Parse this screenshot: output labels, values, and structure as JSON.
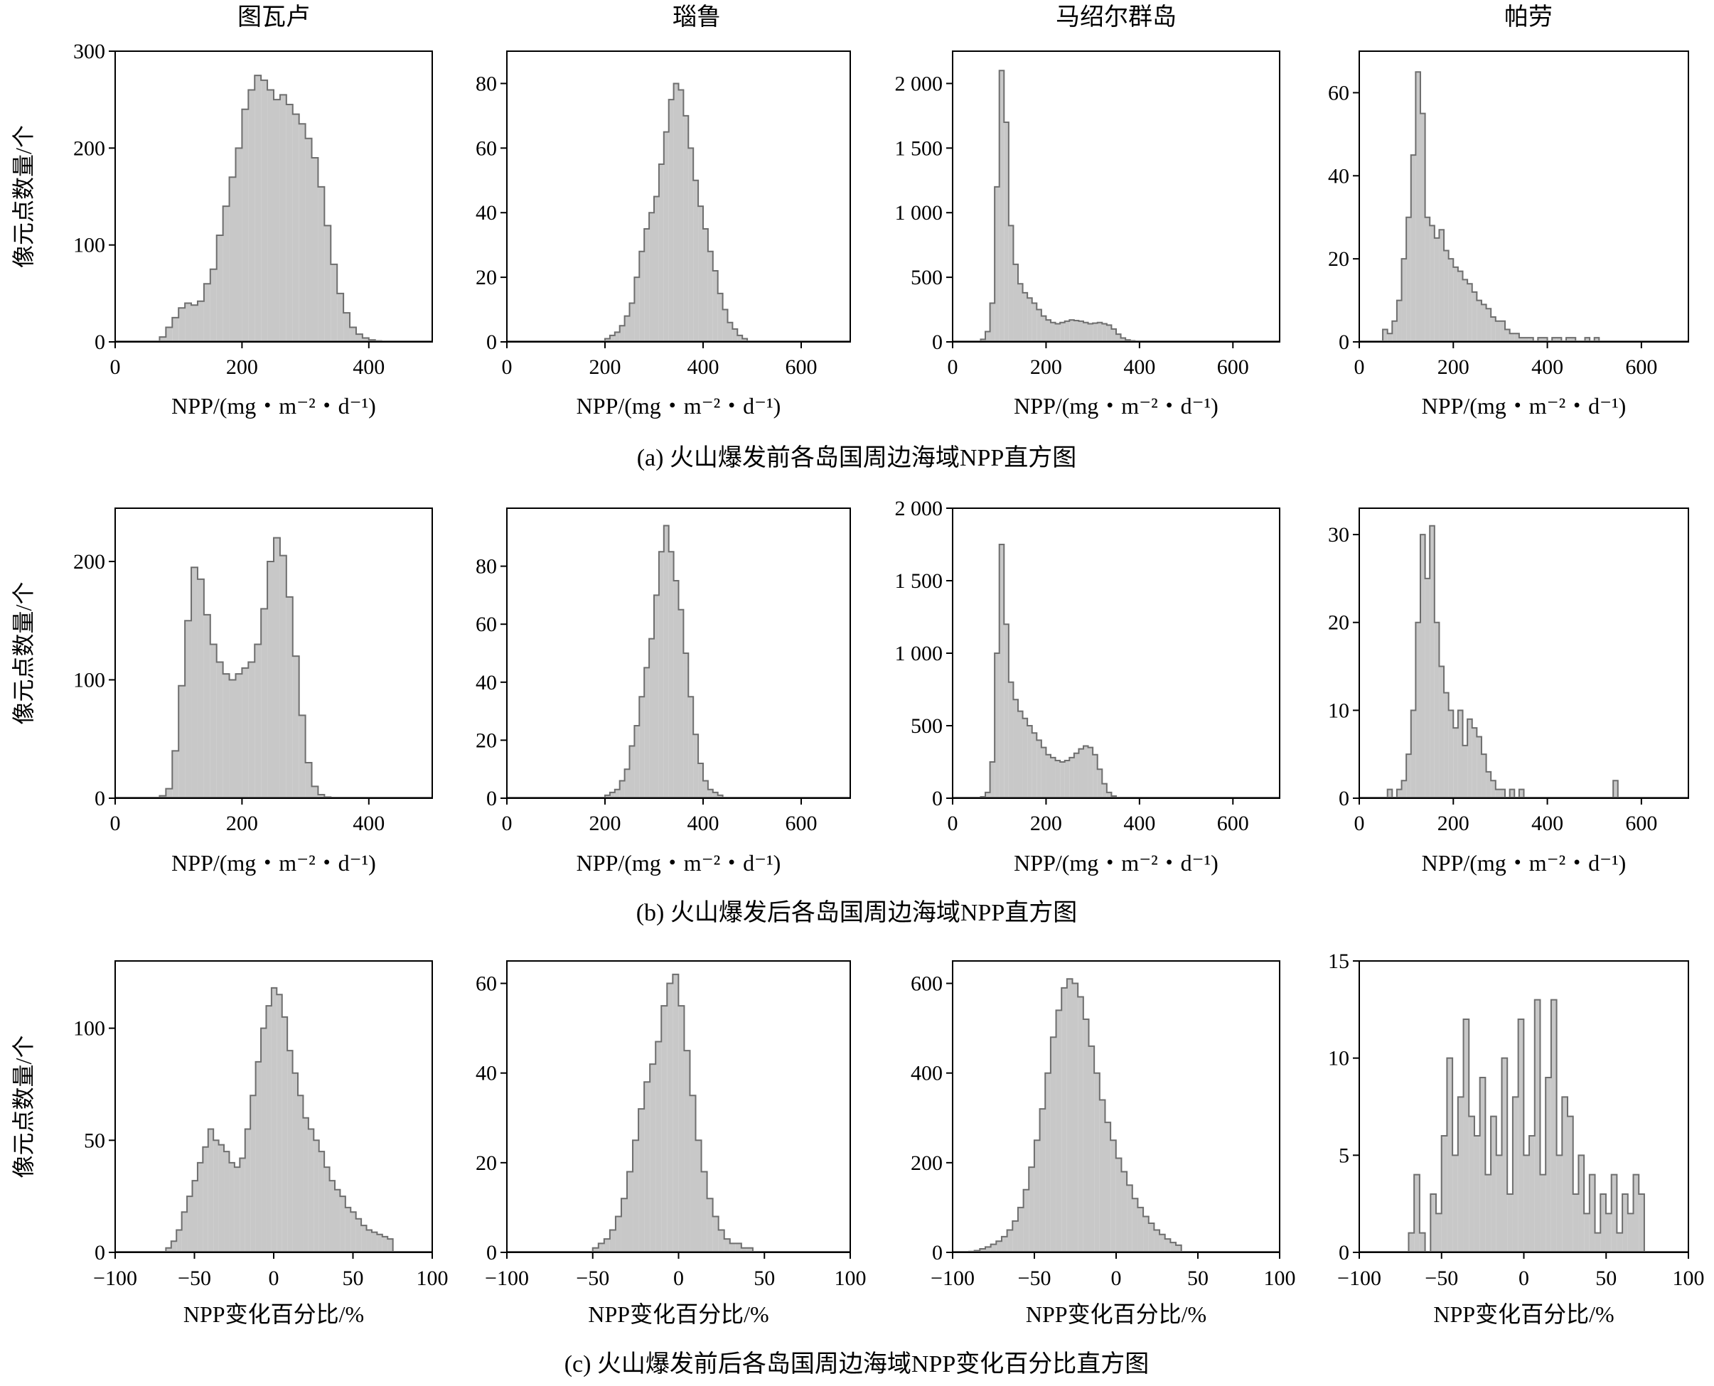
{
  "figure": {
    "row_captions": [
      "(a) 火山爆发前各岛国周边海域NPP直方图",
      "(b) 火山爆发后各岛国周边海域NPP直方图",
      "(c) 火山爆发前后各岛国周边海域NPP变化百分比直方图"
    ],
    "row_ylabel": "像元点数量/个",
    "column_titles": [
      "图瓦卢",
      "瑙鲁",
      "马绍尔群岛",
      "帕劳"
    ],
    "colors": {
      "bar_fill": "#c8c8c8",
      "bar_edge": "#6e6e6e",
      "axis": "#000000"
    }
  },
  "chart_data": [
    {
      "type": "histogram",
      "row": "a",
      "title": "图瓦卢",
      "xlabel": "NPP/(mg・m⁻²・d⁻¹)",
      "ylabel": "像元点数量/个",
      "xlim": [
        0,
        500
      ],
      "ylim": [
        0,
        300
      ],
      "xticks": [
        0,
        200,
        400
      ],
      "xtick_labels": [
        "0",
        "200",
        "400"
      ],
      "yticks": [
        0,
        100,
        200,
        300
      ],
      "ytick_labels": [
        "0",
        "100",
        "200",
        "300"
      ],
      "bin_width": 10,
      "bin_start": 60,
      "values": [
        0,
        5,
        15,
        25,
        35,
        40,
        38,
        42,
        60,
        75,
        110,
        140,
        170,
        200,
        240,
        260,
        275,
        270,
        260,
        250,
        255,
        245,
        235,
        225,
        210,
        190,
        160,
        120,
        80,
        50,
        30,
        15,
        8,
        4,
        2,
        1
      ]
    },
    {
      "type": "histogram",
      "row": "a",
      "title": "瑙鲁",
      "xlabel": "NPP/(mg・m⁻²・d⁻¹)",
      "ylabel": "",
      "xlim": [
        0,
        700
      ],
      "ylim": [
        0,
        90
      ],
      "xticks": [
        0,
        200,
        400,
        600
      ],
      "xtick_labels": [
        "0",
        "200",
        "400",
        "600"
      ],
      "yticks": [
        0,
        20,
        40,
        60,
        80
      ],
      "ytick_labels": [
        "0",
        "20",
        "40",
        "60",
        "80"
      ],
      "bin_width": 10,
      "bin_start": 200,
      "values": [
        1,
        2,
        3,
        5,
        8,
        12,
        20,
        28,
        35,
        40,
        45,
        55,
        65,
        75,
        80,
        78,
        70,
        60,
        50,
        42,
        35,
        28,
        22,
        15,
        10,
        6,
        4,
        2,
        1
      ]
    },
    {
      "type": "histogram",
      "row": "a",
      "title": "马绍尔群岛",
      "xlabel": "NPP/(mg・m⁻²・d⁻¹)",
      "ylabel": "",
      "xlim": [
        0,
        700
      ],
      "ylim": [
        0,
        2250
      ],
      "xticks": [
        0,
        200,
        400,
        600
      ],
      "xtick_labels": [
        "0",
        "200",
        "400",
        "600"
      ],
      "yticks": [
        0,
        500,
        1000,
        1500,
        2000
      ],
      "ytick_labels": [
        "0",
        "500",
        "1 000",
        "1 500",
        "2 000"
      ],
      "bin_width": 10,
      "bin_start": 60,
      "values": [
        20,
        80,
        300,
        1200,
        2100,
        1700,
        900,
        600,
        450,
        380,
        340,
        300,
        250,
        200,
        170,
        150,
        140,
        150,
        160,
        170,
        165,
        160,
        150,
        140,
        145,
        150,
        140,
        130,
        100,
        60,
        30,
        15,
        8,
        5,
        3,
        2,
        1,
        1
      ]
    },
    {
      "type": "histogram",
      "row": "a",
      "title": "帕劳",
      "xlabel": "NPP/(mg・m⁻²・d⁻¹)",
      "ylabel": "",
      "xlim": [
        0,
        700
      ],
      "ylim": [
        0,
        70
      ],
      "xticks": [
        0,
        200,
        400,
        600
      ],
      "xtick_labels": [
        "0",
        "200",
        "400",
        "600"
      ],
      "yticks": [
        0,
        20,
        40,
        60
      ],
      "ytick_labels": [
        "0",
        "20",
        "40",
        "60"
      ],
      "bin_width": 10,
      "bin_start": 50,
      "values": [
        3,
        2,
        5,
        10,
        20,
        30,
        45,
        65,
        55,
        30,
        28,
        25,
        27,
        22,
        20,
        18,
        17,
        15,
        14,
        12,
        10,
        9,
        8,
        6,
        5,
        5,
        3,
        2,
        2,
        1,
        1,
        1,
        0,
        1,
        1,
        0,
        1,
        1,
        0,
        1,
        1,
        0,
        0,
        1,
        0,
        1
      ]
    },
    {
      "type": "histogram",
      "row": "b",
      "title": "图瓦卢",
      "xlabel": "NPP/(mg・m⁻²・d⁻¹)",
      "ylabel": "像元点数量/个",
      "xlim": [
        0,
        500
      ],
      "ylim": [
        0,
        245
      ],
      "xticks": [
        0,
        200,
        400
      ],
      "xtick_labels": [
        "0",
        "200",
        "400"
      ],
      "yticks": [
        0,
        100,
        200
      ],
      "ytick_labels": [
        "0",
        "100",
        "200"
      ],
      "bin_width": 10,
      "bin_start": 60,
      "values": [
        0,
        2,
        8,
        40,
        95,
        150,
        195,
        185,
        155,
        130,
        115,
        105,
        100,
        105,
        110,
        115,
        130,
        160,
        200,
        220,
        205,
        170,
        120,
        70,
        30,
        10,
        3,
        1
      ]
    },
    {
      "type": "histogram",
      "row": "b",
      "title": "瑙鲁",
      "xlabel": "NPP/(mg・m⁻²・d⁻¹)",
      "ylabel": "",
      "xlim": [
        0,
        700
      ],
      "ylim": [
        0,
        100
      ],
      "xticks": [
        0,
        200,
        400,
        600
      ],
      "xtick_labels": [
        "0",
        "200",
        "400",
        "600"
      ],
      "yticks": [
        0,
        20,
        40,
        60,
        80
      ],
      "ytick_labels": [
        "0",
        "20",
        "40",
        "60",
        "80"
      ],
      "bin_width": 10,
      "bin_start": 200,
      "values": [
        1,
        2,
        3,
        6,
        10,
        18,
        25,
        35,
        45,
        55,
        70,
        85,
        94,
        85,
        75,
        65,
        50,
        35,
        22,
        12,
        6,
        3,
        2,
        1
      ]
    },
    {
      "type": "histogram",
      "row": "b",
      "title": "马绍尔群岛",
      "xlabel": "NPP/(mg・m⁻²・d⁻¹)",
      "ylabel": "",
      "xlim": [
        0,
        700
      ],
      "ylim": [
        0,
        2000
      ],
      "xticks": [
        0,
        200,
        400,
        600
      ],
      "xtick_labels": [
        "0",
        "200",
        "400",
        "600"
      ],
      "yticks": [
        0,
        500,
        1000,
        1500,
        2000
      ],
      "ytick_labels": [
        "0",
        "500",
        "1 000",
        "1 500",
        "2 000"
      ],
      "bin_width": 10,
      "bin_start": 60,
      "values": [
        10,
        40,
        250,
        1000,
        1750,
        1200,
        800,
        680,
        600,
        550,
        500,
        450,
        400,
        350,
        300,
        280,
        260,
        250,
        260,
        280,
        310,
        340,
        360,
        350,
        300,
        200,
        100,
        40,
        15,
        5,
        3,
        2,
        1,
        1,
        1,
        1
      ]
    },
    {
      "type": "histogram",
      "row": "b",
      "title": "帕劳",
      "xlabel": "NPP/(mg・m⁻²・d⁻¹)",
      "ylabel": "",
      "xlim": [
        0,
        700
      ],
      "ylim": [
        0,
        33
      ],
      "xticks": [
        0,
        200,
        400,
        600
      ],
      "xtick_labels": [
        "0",
        "200",
        "400",
        "600"
      ],
      "yticks": [
        0,
        10,
        20,
        30
      ],
      "ytick_labels": [
        "0",
        "10",
        "20",
        "30"
      ],
      "bin_width": 10,
      "bin_start": 60,
      "values": [
        1,
        0,
        1,
        2,
        5,
        10,
        20,
        30,
        25,
        31,
        20,
        15,
        12,
        10,
        8,
        10,
        6,
        9,
        8,
        7,
        5,
        3,
        2,
        1,
        1,
        0,
        1,
        0,
        1,
        0,
        0,
        0,
        0,
        0,
        0,
        0,
        0,
        0,
        0,
        0,
        0,
        0,
        0,
        0,
        0,
        0,
        0,
        0,
        2
      ]
    },
    {
      "type": "histogram",
      "row": "c",
      "title": "图瓦卢",
      "xlabel": "NPP变化百分比/%",
      "ylabel": "像元点数量/个",
      "xlim": [
        -100,
        100
      ],
      "ylim": [
        0,
        130
      ],
      "xticks": [
        -100,
        -50,
        0,
        50,
        100
      ],
      "xtick_labels": [
        "−100",
        "−50",
        "0",
        "50",
        "100"
      ],
      "yticks": [
        0,
        50,
        100
      ],
      "ytick_labels": [
        "0",
        "50",
        "100"
      ],
      "bin_width": 3.33,
      "bin_start": -68,
      "values": [
        2,
        5,
        10,
        18,
        25,
        32,
        40,
        47,
        55,
        50,
        48,
        45,
        40,
        38,
        42,
        55,
        70,
        85,
        100,
        110,
        118,
        115,
        105,
        90,
        80,
        70,
        60,
        55,
        50,
        45,
        38,
        32,
        28,
        25,
        20,
        18,
        15,
        12,
        10,
        9,
        8,
        7,
        6
      ]
    },
    {
      "type": "histogram",
      "row": "c",
      "title": "瑙鲁",
      "xlabel": "NPP变化百分比/%",
      "ylabel": "",
      "xlim": [
        -100,
        100
      ],
      "ylim": [
        0,
        65
      ],
      "xticks": [
        -100,
        -50,
        0,
        50,
        100
      ],
      "xtick_labels": [
        "−100",
        "−50",
        "0",
        "50",
        "100"
      ],
      "yticks": [
        0,
        20,
        40,
        60
      ],
      "ytick_labels": [
        "0",
        "20",
        "40",
        "60"
      ],
      "bin_width": 3.33,
      "bin_start": -50,
      "values": [
        1,
        2,
        3,
        5,
        8,
        12,
        18,
        25,
        32,
        38,
        42,
        47,
        55,
        60,
        62,
        55,
        45,
        35,
        25,
        18,
        12,
        8,
        5,
        3,
        2,
        2,
        1,
        1
      ]
    },
    {
      "type": "histogram",
      "row": "c",
      "title": "马绍尔群岛",
      "xlabel": "NPP变化百分比/%",
      "ylabel": "",
      "xlim": [
        -100,
        100
      ],
      "ylim": [
        0,
        650
      ],
      "xticks": [
        -100,
        -50,
        0,
        50,
        100
      ],
      "xtick_labels": [
        "−100",
        "−50",
        "0",
        "50",
        "100"
      ],
      "yticks": [
        0,
        200,
        400,
        600
      ],
      "ytick_labels": [
        "0",
        "200",
        "400",
        "600"
      ],
      "bin_width": 3.33,
      "bin_start": -90,
      "values": [
        2,
        4,
        8,
        12,
        18,
        25,
        35,
        50,
        70,
        100,
        140,
        190,
        250,
        320,
        400,
        480,
        540,
        590,
        610,
        600,
        570,
        520,
        460,
        400,
        340,
        290,
        250,
        210,
        180,
        150,
        120,
        100,
        80,
        65,
        50,
        40,
        30,
        22,
        16
      ]
    },
    {
      "type": "histogram",
      "row": "c",
      "title": "帕劳",
      "xlabel": "NPP变化百分比/%",
      "ylabel": "",
      "xlim": [
        -100,
        100
      ],
      "ylim": [
        0,
        15
      ],
      "xticks": [
        -100,
        -50,
        0,
        50,
        100
      ],
      "xtick_labels": [
        "−100",
        "−50",
        "0",
        "50",
        "100"
      ],
      "yticks": [
        0,
        5,
        10,
        15
      ],
      "ytick_labels": [
        "0",
        "5",
        "10",
        "15"
      ],
      "bin_width": 3.33,
      "bin_start": -70,
      "values": [
        1,
        4,
        1,
        0,
        3,
        2,
        6,
        10,
        5,
        8,
        12,
        7,
        6,
        9,
        4,
        7,
        5,
        10,
        3,
        8,
        12,
        5,
        6,
        13,
        4,
        9,
        13,
        5,
        8,
        7,
        3,
        5,
        2,
        4,
        1,
        3,
        2,
        4,
        1,
        3,
        2,
        4,
        3
      ]
    }
  ]
}
